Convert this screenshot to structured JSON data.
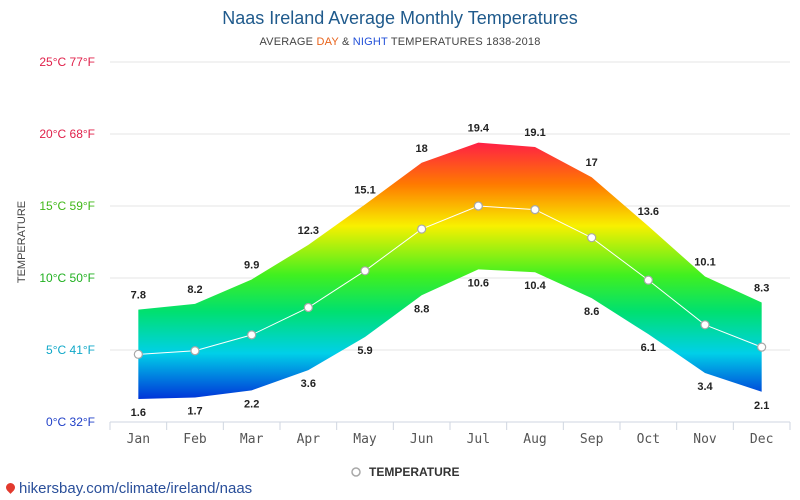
{
  "header": {
    "title": "Naas Ireland Average Monthly Temperatures",
    "subtitle_prefix": "AVERAGE ",
    "subtitle_day": "DAY",
    "subtitle_mid": " & ",
    "subtitle_night": "NIGHT",
    "subtitle_suffix": " TEMPERATURES 1838-2018"
  },
  "watermark": "hikersbay.com/climate/ireland/naas",
  "chart_data": {
    "type": "area",
    "ylabel": "TEMPERATURE",
    "ylim": [
      0,
      25
    ],
    "y_ticks": [
      {
        "value": 0,
        "label": "0°C 32°F",
        "color": "#2040c8"
      },
      {
        "value": 5,
        "label": "5°C 41°F",
        "color": "#10a8c8"
      },
      {
        "value": 10,
        "label": "10°C 50°F",
        "color": "#20b020"
      },
      {
        "value": 15,
        "label": "15°C 59°F",
        "color": "#40b818"
      },
      {
        "value": 20,
        "label": "20°C 68°F",
        "color": "#e0204a"
      },
      {
        "value": 25,
        "label": "25°C 77°F",
        "color": "#e0204a"
      }
    ],
    "categories": [
      "Jan",
      "Feb",
      "Mar",
      "Apr",
      "May",
      "Jun",
      "Jul",
      "Aug",
      "Sep",
      "Oct",
      "Nov",
      "Dec"
    ],
    "day_values": [
      7.8,
      8.2,
      9.9,
      12.3,
      15.1,
      18,
      19.4,
      19.1,
      17,
      13.6,
      10.1,
      8.3
    ],
    "day_labels": [
      "7.8",
      "8.2",
      "9.9",
      "12.3",
      "15.1",
      "18",
      "19.4",
      "19.1",
      "17",
      "13.6",
      "10.1",
      "8.3"
    ],
    "night_values": [
      1.6,
      1.7,
      2.2,
      3.6,
      5.9,
      8.8,
      10.6,
      10.4,
      8.6,
      6.1,
      3.4,
      2.1
    ],
    "night_labels": [
      "1.6",
      "1.7",
      "2.2",
      "3.6",
      "5.9",
      "8.8",
      "10.6",
      "10.4",
      "8.6",
      "6.1",
      "3.4",
      "2.1"
    ],
    "temperature_values": [
      4.7,
      4.95,
      6.05,
      7.95,
      10.5,
      13.4,
      15.0,
      14.75,
      12.8,
      9.85,
      6.75,
      5.2
    ],
    "series": [
      {
        "name": "TEMPERATURE",
        "values": [
          4.7,
          4.95,
          6.05,
          7.95,
          10.5,
          13.4,
          15.0,
          14.75,
          12.8,
          9.85,
          6.75,
          5.2
        ]
      }
    ],
    "legend_position": "bottom",
    "grid": true
  }
}
